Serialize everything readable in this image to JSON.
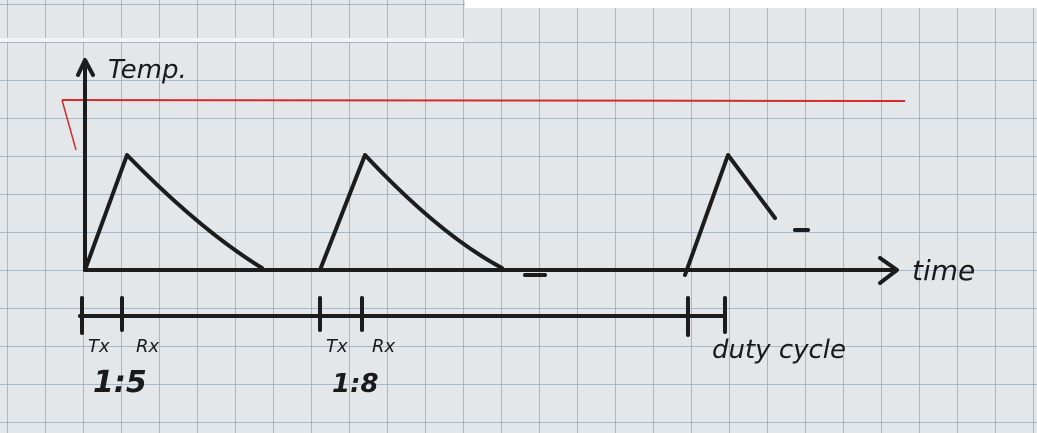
{
  "y_axis_label": "Temp.",
  "x_axis_label": "time",
  "groups": [
    {
      "tx": "Tx",
      "rx": "Rx",
      "ratio": "1:5"
    },
    {
      "tx": "Tx",
      "rx": "Rx",
      "ratio": "1:8"
    }
  ],
  "duty_cycle_label": "duty cycle"
}
